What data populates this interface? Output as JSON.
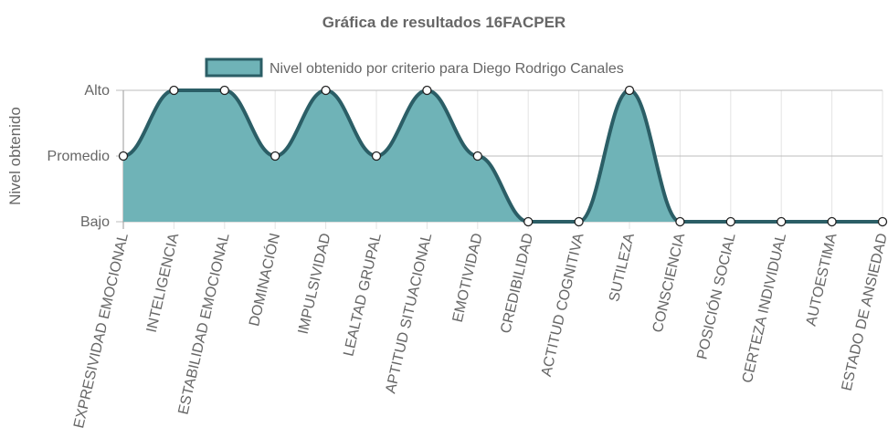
{
  "chart_data": {
    "type": "area",
    "title": "Gráfica de resultados 16FACPER",
    "ylabel": "Nivel obtenido",
    "xlabel": "",
    "y_levels": [
      "Bajo",
      "Promedio",
      "Alto"
    ],
    "ylim": [
      0,
      2
    ],
    "categories": [
      "EXPRESIVIDAD EMOCIONAL",
      "INTELIGENCIA",
      "ESTABILIDAD EMOCIONAL",
      "DOMINACIÓN",
      "IMPULSIVIDAD",
      "LEALTAD GRUPAL",
      "APTITUD SITUACIONAL",
      "EMOTIVIDAD",
      "CREDIBILIDAD",
      "ACTITUD COGNITIVA",
      "SUTILEZA",
      "CONSCIENCIA",
      "POSICIÓN SOCIAL",
      "CERTEZA INDIVIDUAL",
      "AUTOESTIMA",
      "ESTADO DE ANSIEDAD"
    ],
    "series": [
      {
        "name": "Nivel obtenido por criterio para Diego Rodrigo Canales",
        "values": [
          1,
          2,
          2,
          1,
          2,
          1,
          2,
          1,
          0,
          0,
          2,
          0,
          0,
          0,
          0,
          0
        ],
        "fill_color": "#6fb3b7",
        "line_color": "#2b5e66"
      }
    ],
    "grid": true,
    "legend_position": "top"
  }
}
